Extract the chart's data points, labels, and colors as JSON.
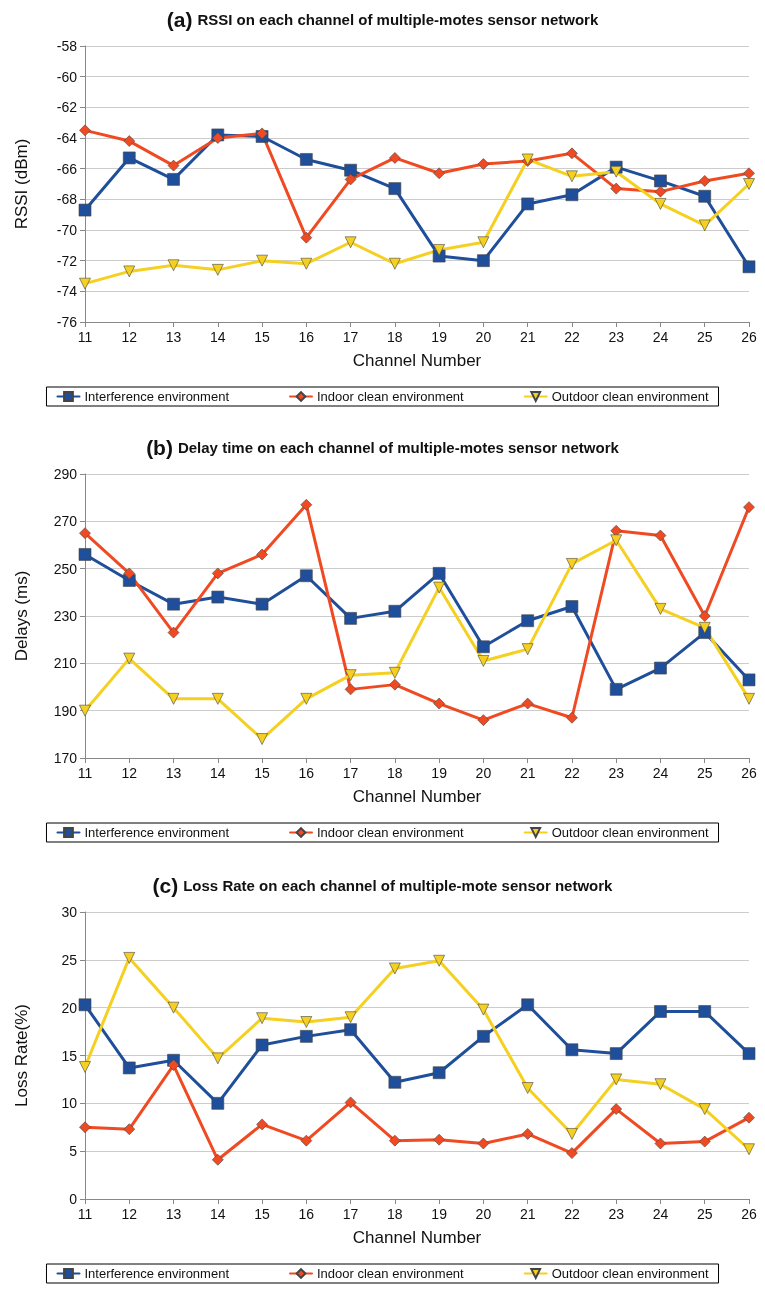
{
  "chart_data": [
    {
      "type": "line",
      "title": "(a) RSSI on each channel of multiple-motes sensor network",
      "xlabel": "Channel Number",
      "ylabel": "RSSI (dBm)",
      "categories": [
        "11",
        "12",
        "13",
        "14",
        "15",
        "16",
        "17",
        "18",
        "19",
        "20",
        "21",
        "22",
        "23",
        "24",
        "25",
        "26"
      ],
      "ylim": [
        -76,
        -58
      ],
      "yticks": [
        -76,
        -74,
        -72,
        -70,
        -68,
        -66,
        -64,
        -62,
        -60,
        -58
      ],
      "grid": "y",
      "legend": "bottom",
      "series": [
        {
          "name": "Interference environment",
          "color": "#1f4e9a",
          "marker": "square",
          "values": [
            -68.7,
            -65.3,
            -66.7,
            -63.8,
            -63.9,
            -65.4,
            -66.1,
            -67.3,
            -71.7,
            -72.0,
            -68.3,
            -67.7,
            -65.9,
            -66.8,
            -67.8,
            -72.4
          ]
        },
        {
          "name": "Indoor clean environment",
          "color": "#f04a23",
          "marker": "diamond",
          "values": [
            -63.5,
            -64.2,
            -65.8,
            -64.0,
            -63.7,
            -70.5,
            -66.7,
            -65.3,
            -66.3,
            -65.7,
            -65.5,
            -65.0,
            -67.3,
            -67.5,
            -66.8,
            -66.3
          ]
        },
        {
          "name": "Outdoor clean environment",
          "color": "#f5d020",
          "marker": "triangle",
          "values": [
            -73.5,
            -72.7,
            -72.3,
            -72.6,
            -72.0,
            -72.2,
            -70.8,
            -72.2,
            -71.3,
            -70.8,
            -65.4,
            -66.5,
            -66.2,
            -68.3,
            -69.7,
            -67.0
          ]
        }
      ]
    },
    {
      "type": "line",
      "title": "(b) Delay time on each channel of multiple-motes sensor network",
      "xlabel": "Channel Number",
      "ylabel": "Delays (ms)",
      "categories": [
        "11",
        "12",
        "13",
        "14",
        "15",
        "16",
        "17",
        "18",
        "19",
        "20",
        "21",
        "22",
        "23",
        "24",
        "25",
        "26"
      ],
      "ylim": [
        170,
        290
      ],
      "yticks": [
        170,
        190,
        210,
        230,
        250,
        270,
        290
      ],
      "grid": "y",
      "legend": "bottom",
      "series": [
        {
          "name": "Interference environment",
          "color": "#1f4e9a",
          "marker": "square",
          "values": [
            256,
            245,
            235,
            238,
            235,
            247,
            229,
            232,
            248,
            217,
            228,
            234,
            199,
            208,
            223,
            203
          ]
        },
        {
          "name": "Indoor clean environment",
          "color": "#f04a23",
          "marker": "diamond",
          "values": [
            265,
            248,
            223,
            248,
            256,
            277,
            199,
            201,
            193,
            186,
            193,
            187,
            266,
            264,
            230,
            276
          ]
        },
        {
          "name": "Outdoor clean environment",
          "color": "#f5d020",
          "marker": "triangle",
          "values": [
            190,
            212,
            195,
            195,
            178,
            195,
            205,
            206,
            242,
            211,
            216,
            252,
            262,
            233,
            225,
            195
          ]
        }
      ]
    },
    {
      "type": "line",
      "title": "(c) Loss Rate on each channel of multiple-mote sensor network",
      "xlabel": "Channel Number",
      "ylabel": "Loss Rate(%)",
      "categories": [
        "11",
        "12",
        "13",
        "14",
        "15",
        "16",
        "17",
        "18",
        "19",
        "20",
        "21",
        "22",
        "23",
        "24",
        "25",
        "26"
      ],
      "ylim": [
        0,
        30
      ],
      "yticks": [
        0,
        5,
        10,
        15,
        20,
        25,
        30
      ],
      "grid": "y",
      "legend": "bottom",
      "series": [
        {
          "name": "Interference environment",
          "color": "#1f4e9a",
          "marker": "square",
          "values": [
            20.3,
            13.7,
            14.5,
            10.0,
            16.1,
            17.0,
            17.7,
            12.2,
            13.2,
            17.0,
            20.3,
            15.6,
            15.2,
            19.6,
            19.6,
            15.2
          ]
        },
        {
          "name": "Indoor clean environment",
          "color": "#f04a23",
          "marker": "diamond",
          "values": [
            7.5,
            7.3,
            14.0,
            4.1,
            7.8,
            6.1,
            10.1,
            6.1,
            6.2,
            5.8,
            6.8,
            4.8,
            9.4,
            5.8,
            6.0,
            8.5
          ]
        },
        {
          "name": "Outdoor clean environment",
          "color": "#f5d020",
          "marker": "triangle",
          "values": [
            13.8,
            25.2,
            20.0,
            14.7,
            18.9,
            18.5,
            19.0,
            24.1,
            24.9,
            19.8,
            11.6,
            6.8,
            12.5,
            12.0,
            9.4,
            5.2
          ]
        }
      ]
    }
  ]
}
